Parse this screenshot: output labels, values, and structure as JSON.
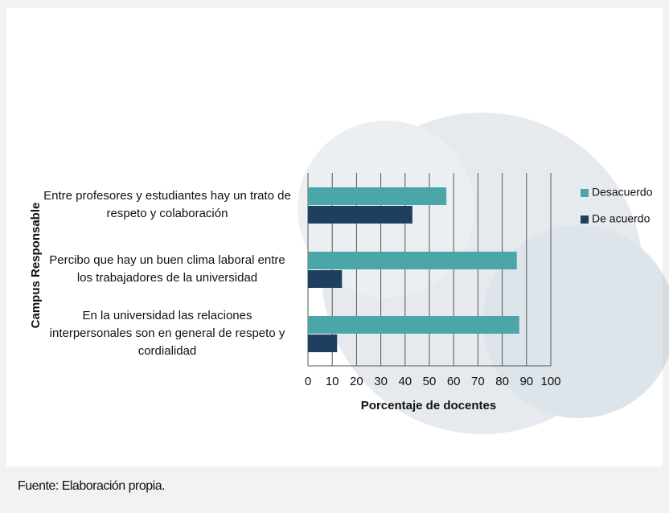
{
  "chart_data": {
    "type": "barh",
    "categories": [
      "Entre profesores y estudiantes hay un trato de respeto y colaboración",
      "Percibo que hay un buen clima laboral entre los trabajadores de la universidad",
      "En la universidad las relaciones interpersonales son en general de respeto y cordialidad"
    ],
    "series": [
      {
        "name": "Desacuerdo",
        "color": "#4aa6a8",
        "values": [
          57,
          86,
          87
        ]
      },
      {
        "name": "De acuerdo",
        "color": "#1f3f5e",
        "values": [
          43,
          14,
          12
        ]
      }
    ],
    "xlim": [
      0,
      100
    ],
    "xticks": [
      0,
      10,
      20,
      30,
      40,
      50,
      60,
      70,
      80,
      90,
      100
    ],
    "xlabel": "Porcentaje de docentes",
    "ylabel": "Campus Responsable",
    "grid": true,
    "legend": "right",
    "source": "Fuente: Elaboración propia."
  }
}
